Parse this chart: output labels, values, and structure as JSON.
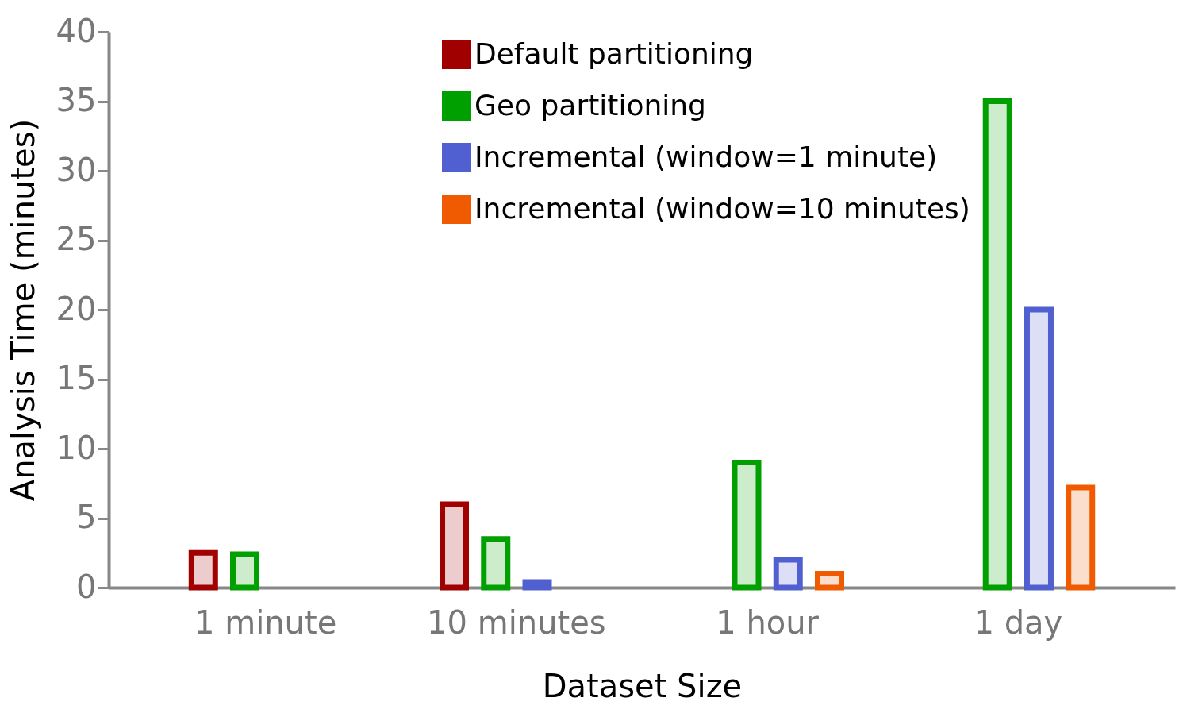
{
  "chart_data": {
    "type": "bar",
    "xlabel": "Dataset Size",
    "ylabel": "Analysis Time (minutes)",
    "categories": [
      "1 minute",
      "10 minutes",
      "1 hour",
      "1 day"
    ],
    "series": [
      {
        "name": "Default partitioning",
        "color": "#a00000",
        "values": [
          2.5,
          6,
          null,
          null
        ]
      },
      {
        "name": "Geo partitioning",
        "color": "#00a000",
        "values": [
          2.4,
          3.5,
          9,
          35
        ]
      },
      {
        "name": "Incremental (window=1 minute)",
        "color": "#5060d0",
        "values": [
          null,
          0.4,
          2,
          20
        ]
      },
      {
        "name": "Incremental (window=10 minutes)",
        "color": "#f05a00",
        "values": [
          null,
          null,
          1,
          7.2
        ]
      }
    ],
    "ylim": [
      0,
      40
    ],
    "yticks": [
      0,
      5,
      10,
      15,
      20,
      25,
      30,
      35,
      40
    ],
    "grid": false,
    "legend": "top"
  }
}
